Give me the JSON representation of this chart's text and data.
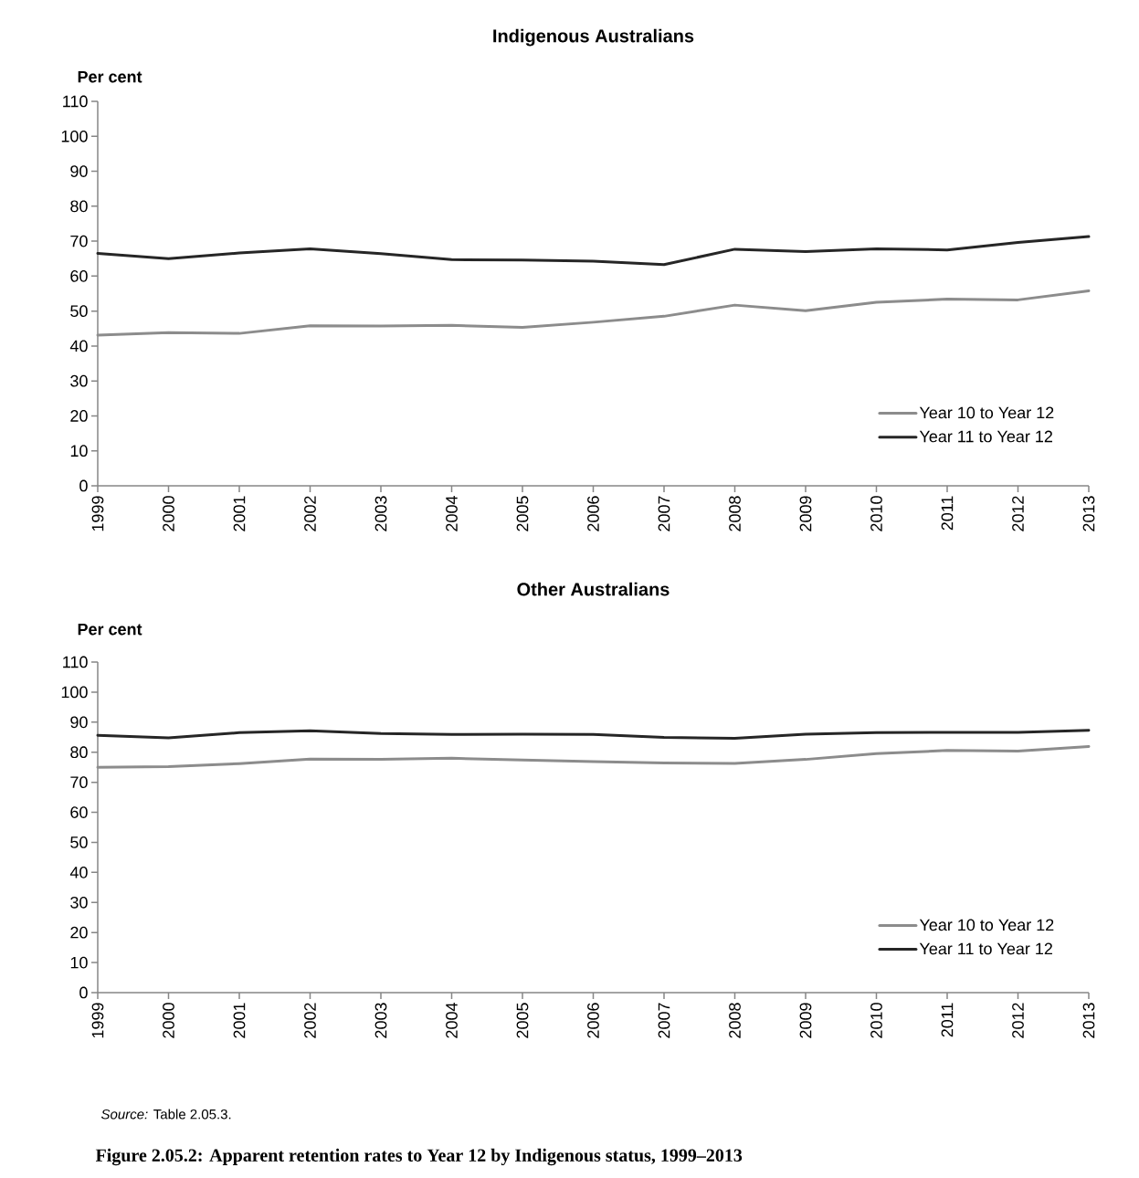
{
  "chart_data": [
    {
      "type": "line",
      "title": "Indigenous Australians",
      "ylabel": "Per cent",
      "categories": [
        "1999",
        "2000",
        "2001",
        "2002",
        "2003",
        "2004",
        "2005",
        "2006",
        "2007",
        "2008",
        "2009",
        "2010",
        "2011",
        "2012",
        "2013"
      ],
      "series": [
        {
          "name": "Year 10 to Year 12",
          "color": "#8c8c8c",
          "values": [
            43.1,
            43.8,
            43.6,
            45.8,
            45.7,
            45.9,
            45.3,
            46.8,
            48.5,
            51.7,
            50.1,
            52.5,
            53.4,
            53.2,
            55.8
          ]
        },
        {
          "name": "Year 11 to Year 12",
          "color": "#262626",
          "values": [
            66.5,
            65.0,
            66.6,
            67.8,
            66.4,
            64.7,
            64.6,
            64.3,
            63.3,
            67.7,
            67.0,
            67.8,
            67.5,
            69.6,
            71.3
          ]
        }
      ],
      "ylim": [
        0,
        110
      ],
      "yticks": [
        0,
        10,
        20,
        30,
        40,
        50,
        60,
        70,
        80,
        90,
        100,
        110
      ],
      "legend": "bottom right"
    },
    {
      "type": "line",
      "title": "Other Australians",
      "ylabel": "Per cent",
      "categories": [
        "1999",
        "2000",
        "2001",
        "2002",
        "2003",
        "2004",
        "2005",
        "2006",
        "2007",
        "2008",
        "2009",
        "2010",
        "2011",
        "2012",
        "2013"
      ],
      "series": [
        {
          "name": "Year 10 to Year 12",
          "color": "#8c8c8c",
          "values": [
            75.0,
            75.2,
            76.2,
            77.7,
            77.6,
            78.0,
            77.4,
            76.9,
            76.4,
            76.3,
            77.6,
            79.5,
            80.6,
            80.4,
            81.9
          ]
        },
        {
          "name": "Year 11 to Year 12",
          "color": "#262626",
          "values": [
            85.6,
            84.8,
            86.5,
            87.1,
            86.2,
            85.9,
            86.0,
            85.9,
            84.9,
            84.6,
            86.0,
            86.5,
            86.6,
            86.6,
            87.3
          ]
        }
      ],
      "ylim": [
        0,
        110
      ],
      "yticks": [
        0,
        10,
        20,
        30,
        40,
        50,
        60,
        70,
        80,
        90,
        100,
        110
      ],
      "legend": "bottom right",
      "annotations": [
        "*Source:* Table 2.05.3.",
        "Figure 2.05.2: Apparent retention rates to Year 12 by Indigenous status, 1999–2013"
      ]
    }
  ]
}
